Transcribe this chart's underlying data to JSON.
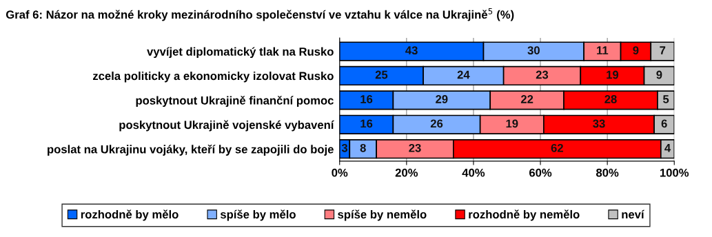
{
  "chart_data": {
    "type": "bar",
    "orientation": "horizontal",
    "stacked": true,
    "title": "Graf 6: Názor na možné kroky mezinárodního společenství ve vztahu k válce na Ukrajině$^{5}$ (%)",
    "categories": [
      "vyvíjet diplomatický tlak na Rusko",
      "zcela politicky a ekonomicky izolovat Rusko",
      "poskytnout Ukrajině finanční pomoc",
      "poskytnout Ukrajině vojenské vybavení",
      "poslat na Ukrajinu vojáky, kteří by se zapojili do boje"
    ],
    "series": [
      {
        "name": "rozhodně by mělo",
        "color": "#0066ff",
        "values": [
          43,
          25,
          16,
          16,
          3
        ]
      },
      {
        "name": "spíše by mělo",
        "color": "#80b0ff",
        "values": [
          30,
          24,
          29,
          26,
          8
        ]
      },
      {
        "name": "spíše by nemělo",
        "color": "#ff7c80",
        "values": [
          11,
          23,
          22,
          19,
          23
        ]
      },
      {
        "name": "rozhodně by nemělo",
        "color": "#ff0000",
        "values": [
          9,
          19,
          28,
          33,
          62
        ]
      },
      {
        "name": "neví",
        "color": "#c0c0c0",
        "values": [
          7,
          9,
          5,
          6,
          4
        ]
      }
    ],
    "xlim": [
      0,
      100
    ],
    "xticks": [
      {
        "value": 0,
        "label": "0%"
      },
      {
        "value": 20,
        "label": "20%"
      },
      {
        "value": 40,
        "label": "40%"
      },
      {
        "value": 60,
        "label": "60%"
      },
      {
        "value": 80,
        "label": "80%"
      },
      {
        "value": 100,
        "label": "100%"
      }
    ],
    "grid": "x",
    "data_labels": true,
    "legend": "bottom"
  }
}
